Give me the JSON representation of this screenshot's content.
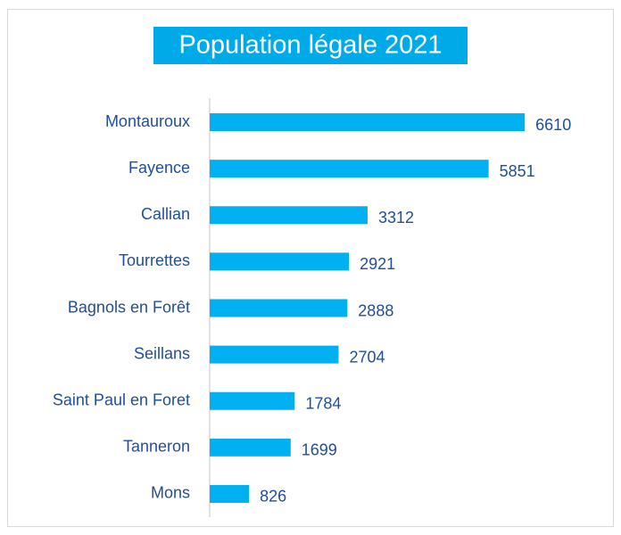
{
  "chart_data": {
    "type": "bar",
    "orientation": "horizontal",
    "title": "Population légale 2021",
    "categories": [
      "Montauroux",
      "Fayence",
      "Callian",
      "Tourrettes",
      "Bagnols en Forêt",
      "Seillans",
      "Saint Paul en Foret",
      "Tanneron",
      "Mons"
    ],
    "values": [
      6610,
      5851,
      3312,
      2921,
      2888,
      2704,
      1784,
      1699,
      826
    ],
    "color": "#00b0f0",
    "xlim": [
      0,
      7000
    ],
    "grid": false
  }
}
